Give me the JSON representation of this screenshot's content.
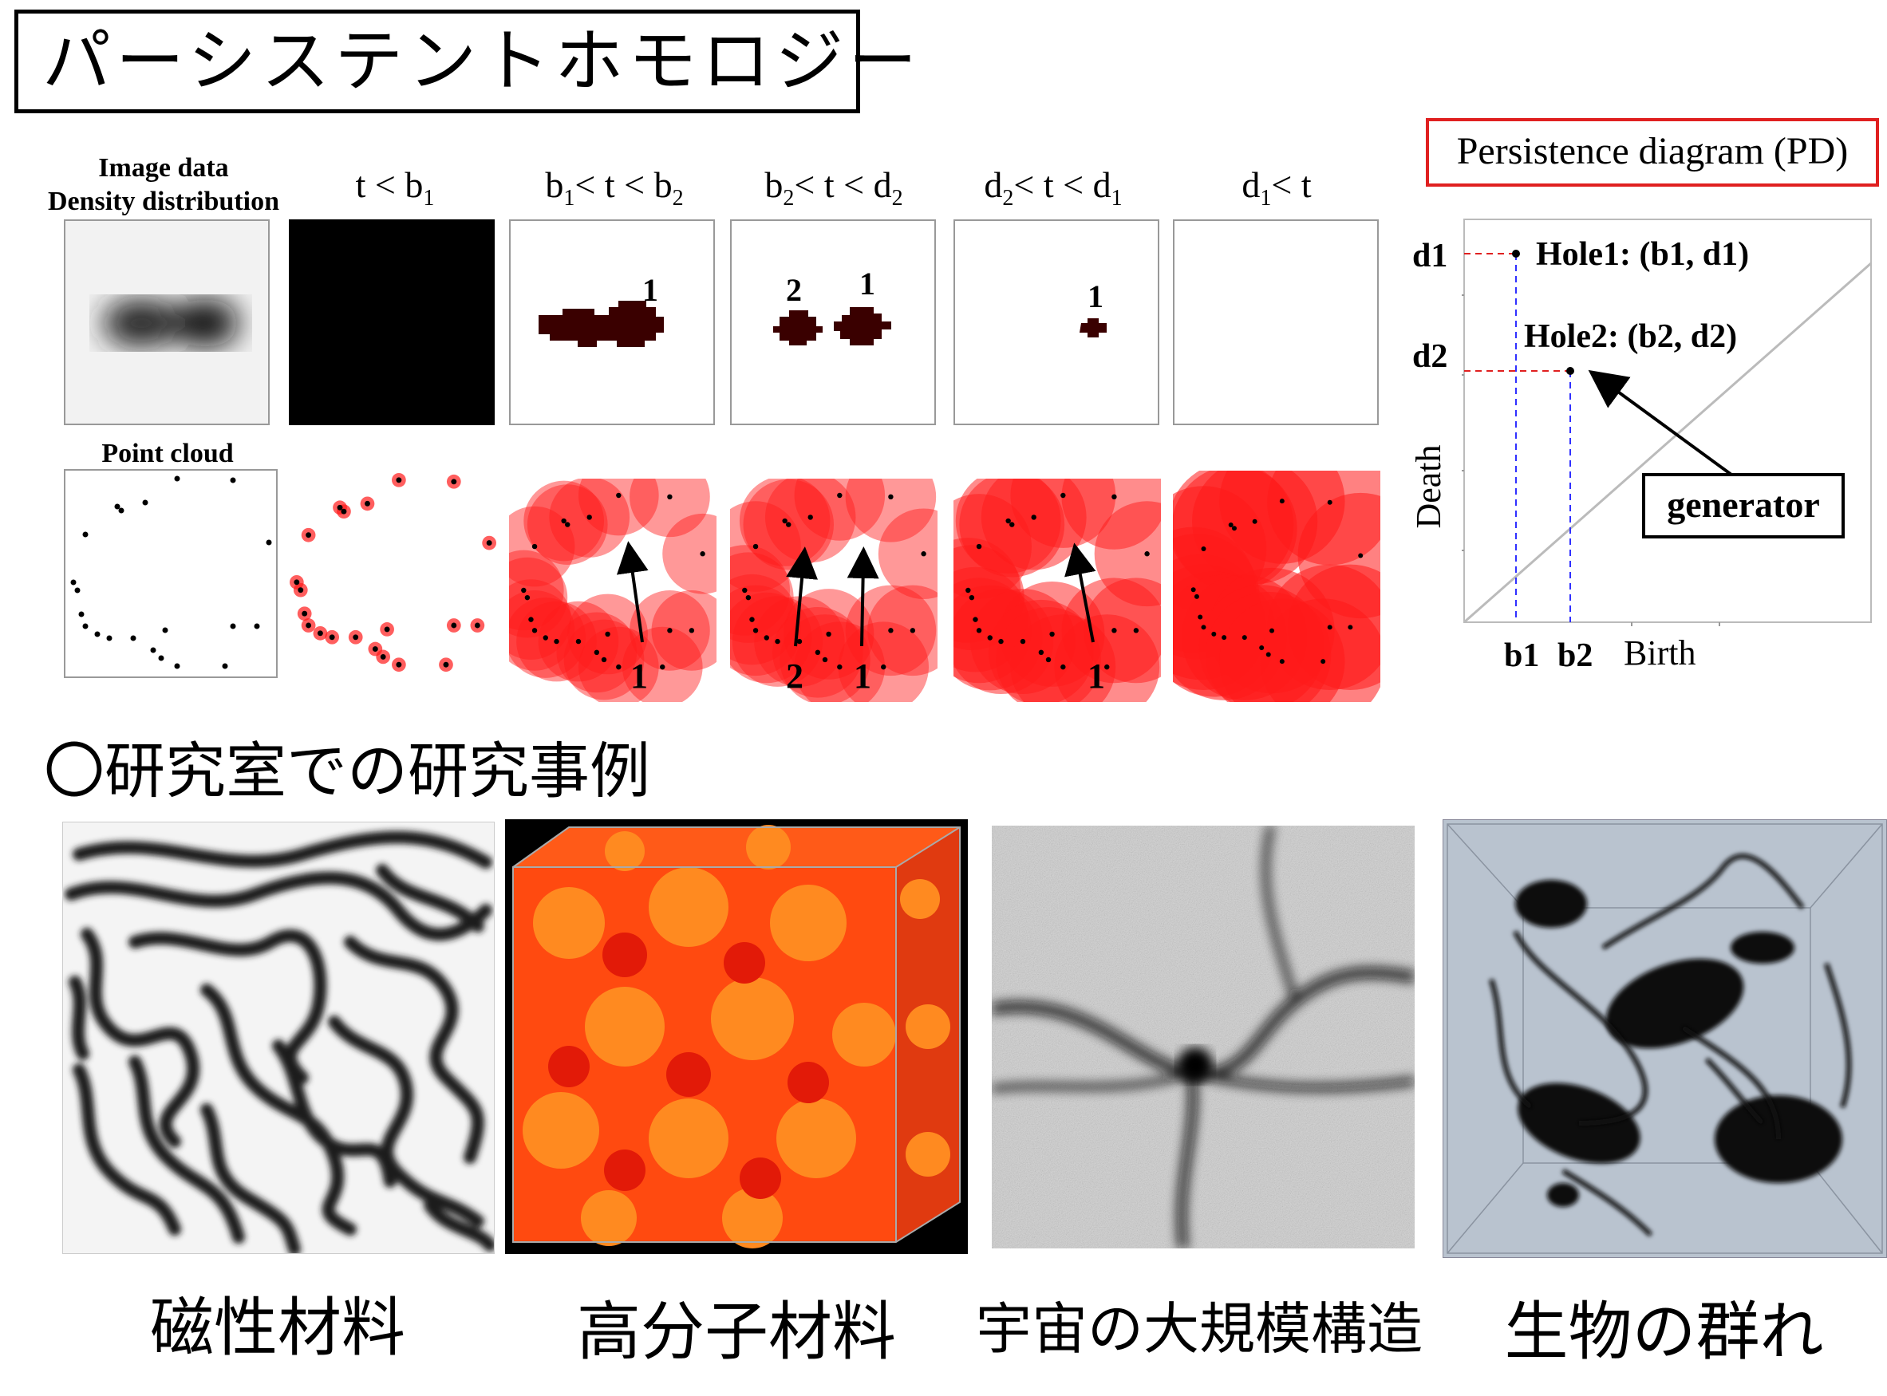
{
  "title": "パーシステントホモロジー",
  "filtration": {
    "row1_label_line1": "Image data",
    "row1_label_line2": "Density distribution",
    "row2_label": "Point cloud",
    "columns": [
      {
        "base": "t < b",
        "sub": "1",
        "tail": ""
      },
      {
        "base": "b",
        "sub": "1",
        "tail": "< t < b",
        "sub2": "2"
      },
      {
        "base": "b",
        "sub": "2",
        "tail": "< t < d",
        "sub2": "2"
      },
      {
        "base": "d",
        "sub": "2",
        "tail": "< t < d",
        "sub2": "1"
      },
      {
        "base": "d",
        "sub": "1",
        "tail": "< t",
        "sub2": ""
      }
    ],
    "image_labels": {
      "col3": [
        "1"
      ],
      "col4": [
        "2",
        "1"
      ],
      "col5": [
        "1"
      ]
    },
    "cloud_labels": {
      "col3": [
        "1"
      ],
      "col4": [
        "2",
        "1"
      ],
      "col5": [
        "1"
      ]
    }
  },
  "persistence_diagram": {
    "title": "Persistence diagram (PD)",
    "ylabel": "Death",
    "xlabel": "Birth",
    "hole1": "Hole1: (b1, d1)",
    "hole2": "Hole2: (b2, d2)",
    "generator": "generator",
    "tick_d1": "d1",
    "tick_d2": "d2",
    "tick_b1": "b1",
    "tick_b2": "b2"
  },
  "section_heading": "〇研究室での研究事例",
  "examples": [
    {
      "caption": "磁性材料"
    },
    {
      "caption": "高分子材料"
    },
    {
      "caption": "宇宙の大規模構造"
    },
    {
      "caption": "生物の群れ"
    }
  ],
  "colors": {
    "balls": "#ff1a1a",
    "blob": "#3a0000",
    "pd_box": "#e02020",
    "guide_red": "#e02020",
    "guide_blue": "#3030ff",
    "pd_bg": "#b9c3cf"
  }
}
